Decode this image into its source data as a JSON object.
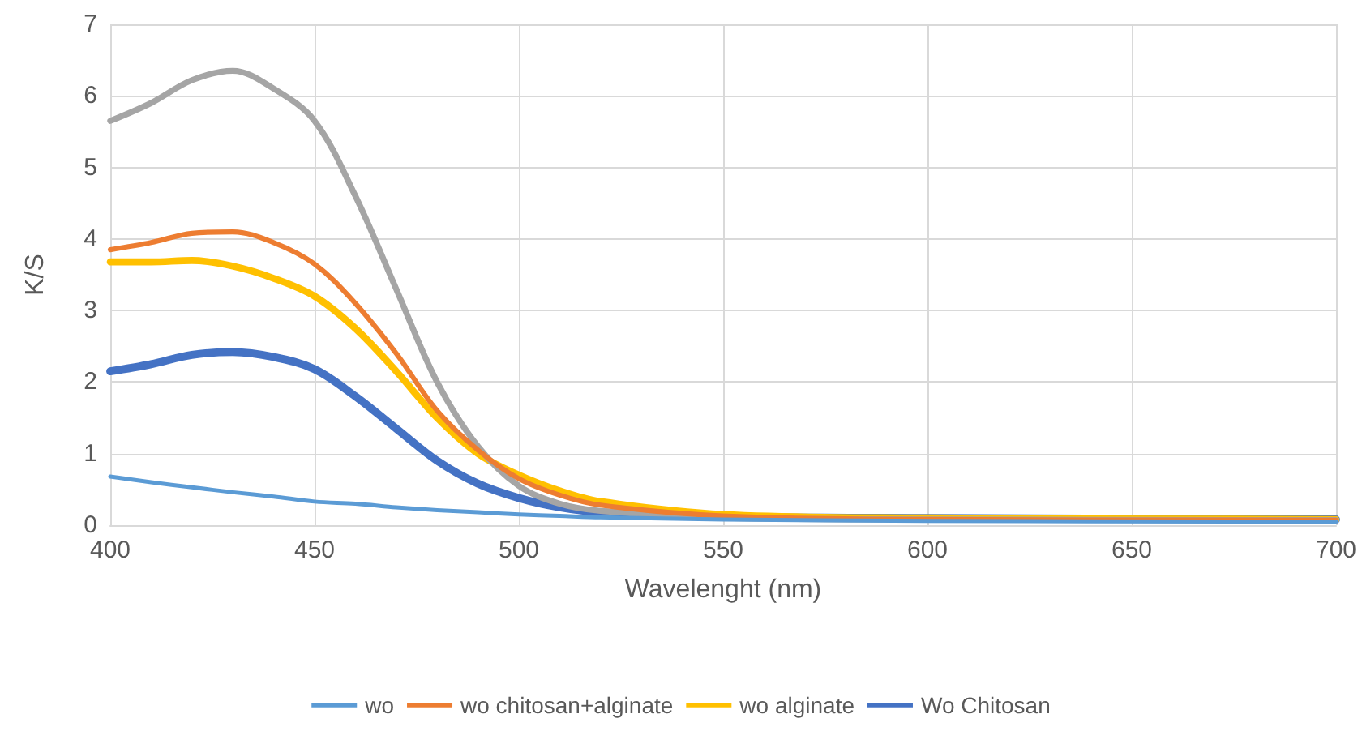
{
  "chart_data": {
    "type": "line",
    "xlabel": "Wavelenght (nm)",
    "ylabel": "K/S",
    "xlim": [
      400,
      700
    ],
    "xticks": [
      400,
      450,
      500,
      550,
      600,
      650,
      700
    ],
    "ylim": [
      0,
      7
    ],
    "yticks": [
      0,
      1,
      2,
      3,
      4,
      5,
      6,
      7
    ],
    "grid": true,
    "legend": "bottom",
    "marker": "none",
    "line_style": "solid",
    "x": [
      400,
      410,
      420,
      430,
      440,
      450,
      460,
      470,
      480,
      490,
      500,
      510,
      520,
      550,
      600,
      700
    ],
    "series": [
      {
        "name": "wo",
        "color": "#5b9bd5",
        "values": [
          0.68,
          0.6,
          0.53,
          0.46,
          0.4,
          0.33,
          0.3,
          0.25,
          0.21,
          0.18,
          0.15,
          0.13,
          0.11,
          0.08,
          0.06,
          0.05
        ]
      },
      {
        "name": "wo chitosan+alginate",
        "color": "#ed7d31",
        "values": [
          3.85,
          3.95,
          4.08,
          4.1,
          3.95,
          3.65,
          3.1,
          2.4,
          1.6,
          1.05,
          0.65,
          0.42,
          0.28,
          0.13,
          0.08,
          0.07
        ]
      },
      {
        "color": "#a5a5a5",
        "values": [
          5.65,
          5.9,
          6.22,
          6.35,
          6.1,
          5.65,
          4.6,
          3.3,
          2.0,
          1.1,
          0.55,
          0.3,
          0.2,
          0.1,
          0.08,
          0.07
        ]
      },
      {
        "name": "wo alginate",
        "color": "#ffc000",
        "values": [
          3.68,
          3.68,
          3.7,
          3.62,
          3.45,
          3.2,
          2.75,
          2.15,
          1.5,
          1.0,
          0.7,
          0.48,
          0.33,
          0.15,
          0.1,
          0.08
        ]
      },
      {
        "name": "Wo Chitosan",
        "color": "#4472c4",
        "values": [
          2.15,
          2.25,
          2.38,
          2.42,
          2.35,
          2.18,
          1.8,
          1.35,
          0.9,
          0.58,
          0.38,
          0.25,
          0.18,
          0.12,
          0.1,
          0.08
        ]
      }
    ]
  }
}
